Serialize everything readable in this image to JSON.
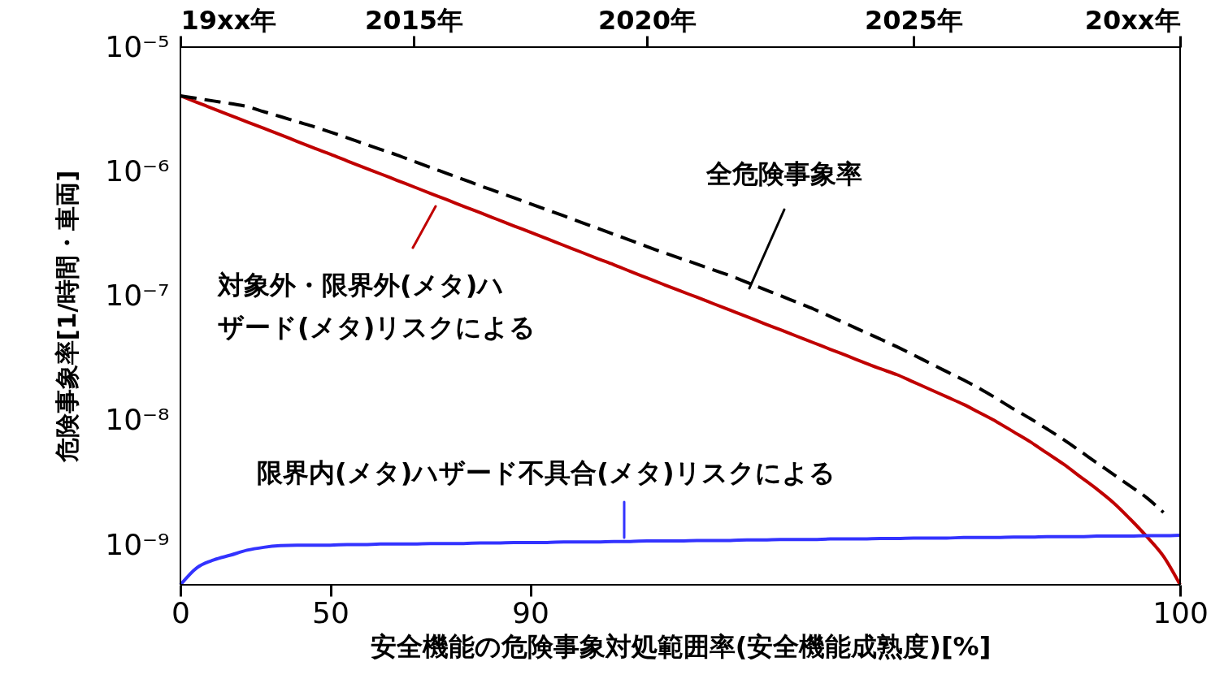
{
  "chart_data": {
    "type": "line",
    "xlabel": "安全機能の危険事象対処範囲率(安全機能成熟度)[%]",
    "ylabel": "危険事象率[1/時間・車両]",
    "categories": [
      "0",
      null,
      null,
      null,
      null,
      null,
      null,
      null,
      null,
      "50",
      null,
      null,
      null,
      null,
      null,
      null,
      null,
      null,
      null,
      null,
      null,
      "90",
      null,
      null,
      null,
      null,
      null,
      null,
      null,
      null,
      null,
      null,
      null,
      null,
      null,
      null,
      null,
      null,
      null,
      null,
      null,
      null,
      null,
      null,
      null,
      null,
      null,
      null,
      null,
      null,
      null,
      null,
      null,
      null,
      null,
      null,
      null,
      null,
      null,
      null,
      "100"
    ],
    "annotations": [
      "19xx年",
      "2015年",
      "2020年",
      "2025年",
      "20xx年"
    ],
    "ylim": [
      4.8e-10,
      1e-05
    ],
    "log": true,
    "yticks": [
      {
        "value": 1e-09,
        "label": "10⁻⁹"
      },
      {
        "value": 1e-08,
        "label": "10⁻⁸"
      },
      {
        "value": 1e-07,
        "label": "10⁻⁷"
      },
      {
        "value": 1e-06,
        "label": "10⁻⁶"
      },
      {
        "value": 1e-05,
        "label": "10⁻⁵"
      }
    ],
    "series": [
      {
        "name": "対象外・限界外(メタ)ハザード(メタ)リスクによる",
        "color": "#c00000",
        "line_style": "solid",
        "values": [
          4.06e-06,
          3.6e-06,
          3.19e-06,
          2.83e-06,
          2.51e-06,
          2.23e-06,
          1.98e-06,
          1.75e-06,
          1.55e-06,
          1.38e-06,
          1.22e-06,
          1.08e-06,
          9.6e-07,
          8.51e-07,
          7.55e-07,
          6.69e-07,
          5.94e-07,
          5.26e-07,
          4.67e-07,
          4.14e-07,
          3.67e-07,
          3.26e-07,
          2.89e-07,
          2.56e-07,
          2.27e-07,
          2.01e-07,
          1.79e-07,
          1.58e-07,
          1.4e-07,
          1.24e-07,
          1.1e-07,
          9.79e-08,
          8.68e-08,
          7.7e-08,
          6.83e-08,
          6.05e-08,
          5.37e-08,
          4.76e-08,
          4.22e-08,
          3.74e-08,
          3.32e-08,
          2.94e-08,
          2.61e-08,
          2.34e-08,
          2.04e-08,
          1.78e-08,
          1.55e-08,
          1.35e-08,
          1.15e-08,
          9.77e-09,
          8.13e-09,
          6.76e-09,
          5.5e-09,
          4.47e-09,
          3.55e-09,
          2.82e-09,
          2.19e-09,
          1.62e-09,
          1.17e-09,
          8.13e-10,
          4.8e-10
        ]
      },
      {
        "name": "全危険事象率",
        "color": "#000000",
        "line_style": "dashed",
        "values": [
          4.06e-06,
          3.87e-06,
          3.69e-06,
          3.52e-06,
          3.33e-06,
          3.03e-06,
          2.77e-06,
          2.52e-06,
          2.3e-06,
          2.08e-06,
          1.87e-06,
          1.68e-06,
          1.51e-06,
          1.36e-06,
          1.21e-06,
          1.08e-06,
          9.66e-07,
          8.63e-07,
          7.69e-07,
          6.89e-07,
          6.17e-07,
          5.51e-07,
          4.93e-07,
          4.42e-07,
          3.94e-07,
          3.52e-07,
          3.14e-07,
          2.81e-07,
          2.5e-07,
          2.24e-07,
          2.01e-07,
          1.81e-07,
          1.62e-07,
          1.46e-07,
          1.29e-07,
          1.14e-07,
          1.01e-07,
          8.91e-08,
          7.87e-08,
          6.86e-08,
          5.97e-08,
          5.19e-08,
          4.52e-08,
          3.92e-08,
          3.37e-08,
          2.88e-08,
          2.47e-08,
          2.12e-08,
          1.8e-08,
          1.5e-08,
          1.24e-08,
          1.04e-08,
          8.59e-09,
          7.05e-09,
          5.69e-09,
          4.58e-09,
          3.7e-09,
          2.98e-09,
          2.4e-09,
          1.83e-09,
          null
        ]
      },
      {
        "name": "限界内(メタ)ハザード不具合(メタ)リスクによる",
        "color": "#3333ff",
        "line_style": "solid",
        "values": [
          4.8e-10,
          6.6e-10,
          7.6e-10,
          8.3e-10,
          9.1e-10,
          9.6e-10,
          9.9e-10,
          1e-09,
          1e-09,
          1e-09,
          1.01e-09,
          1.01e-09,
          1.02e-09,
          1.02e-09,
          1.02e-09,
          1.03e-09,
          1.03e-09,
          1.03e-09,
          1.04e-09,
          1.04e-09,
          1.05e-09,
          1.05e-09,
          1.05e-09,
          1.06e-09,
          1.06e-09,
          1.06e-09,
          1.07e-09,
          1.07e-09,
          1.08e-09,
          1.08e-09,
          1.08e-09,
          1.09e-09,
          1.09e-09,
          1.09e-09,
          1.1e-09,
          1.1e-09,
          1.11e-09,
          1.11e-09,
          1.11e-09,
          1.12e-09,
          1.12e-09,
          1.12e-09,
          1.13e-09,
          1.13e-09,
          1.14e-09,
          1.14e-09,
          1.14e-09,
          1.15e-09,
          1.15e-09,
          1.15e-09,
          1.16e-09,
          1.16e-09,
          1.17e-09,
          1.17e-09,
          1.17e-09,
          1.18e-09,
          1.18e-09,
          1.18e-09,
          1.19e-09,
          1.19e-09,
          1.2e-09
        ]
      }
    ]
  }
}
